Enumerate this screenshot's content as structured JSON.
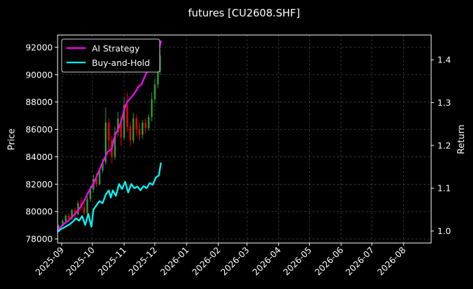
{
  "chart_data": {
    "type": "line",
    "title": "futures [CU2608.SHF]",
    "xlabel": "",
    "ylabel": "Price",
    "ylabel_right": "Return",
    "x_range": [
      "2025-08-28",
      "2026-08-28"
    ],
    "ylim": [
      77700,
      92900
    ],
    "ylim_right": [
      0.972,
      1.458
    ],
    "x_ticks": [
      "2025-09",
      "2025-10",
      "2025-11",
      "2025-12",
      "2026-01",
      "2026-02",
      "2026-03",
      "2026-04",
      "2026-05",
      "2026-06",
      "2026-07",
      "2026-08"
    ],
    "y_ticks": [
      78000,
      80000,
      82000,
      84000,
      86000,
      88000,
      90000,
      92000
    ],
    "y_ticks_right": [
      1.0,
      1.1,
      1.2,
      1.3,
      1.4
    ],
    "grid": true,
    "legend_position": "top-left",
    "colors": {
      "background": "#000000",
      "up": "#2ca02c",
      "down": "#ff0000",
      "grid": "#555555"
    },
    "series": [
      {
        "name": "AI Strategy",
        "color": "#ff00ff",
        "axis": "right",
        "x": [
          "2025-08-28",
          "2025-09-01",
          "2025-09-04",
          "2025-09-08",
          "2025-09-12",
          "2025-09-16",
          "2025-09-19",
          "2025-09-24",
          "2025-09-28",
          "2025-10-02",
          "2025-10-06",
          "2025-10-10",
          "2025-10-14",
          "2025-10-16",
          "2025-10-20",
          "2025-10-22",
          "2025-10-24",
          "2025-10-27",
          "2025-10-30",
          "2025-11-01",
          "2025-11-04",
          "2025-11-08",
          "2025-11-12",
          "2025-11-15",
          "2025-11-18",
          "2025-11-21",
          "2025-11-24",
          "2025-11-27",
          "2025-11-30",
          "2025-12-03",
          "2025-12-05",
          "2025-12-07"
        ],
        "values": [
          1.002,
          1.012,
          1.018,
          1.025,
          1.035,
          1.045,
          1.055,
          1.075,
          1.095,
          1.11,
          1.132,
          1.155,
          1.175,
          1.185,
          1.192,
          1.215,
          1.228,
          1.242,
          1.262,
          1.285,
          1.302,
          1.312,
          1.325,
          1.338,
          1.342,
          1.36,
          1.375,
          1.385,
          1.392,
          1.402,
          1.422,
          1.445
        ]
      },
      {
        "name": "Buy-and-Hold",
        "color": "#00ffff",
        "axis": "right",
        "x": [
          "2025-08-28",
          "2025-08-31",
          "2025-09-03",
          "2025-09-06",
          "2025-09-09",
          "2025-09-12",
          "2025-09-15",
          "2025-09-18",
          "2025-09-21",
          "2025-09-24",
          "2025-09-27",
          "2025-09-30",
          "2025-10-02",
          "2025-10-05",
          "2025-10-08",
          "2025-10-11",
          "2025-10-14",
          "2025-10-17",
          "2025-10-19",
          "2025-10-21",
          "2025-10-24",
          "2025-10-27",
          "2025-10-30",
          "2025-11-02",
          "2025-11-05",
          "2025-11-08",
          "2025-11-11",
          "2025-11-14",
          "2025-11-17",
          "2025-11-20",
          "2025-11-23",
          "2025-11-26",
          "2025-11-29",
          "2025-12-02",
          "2025-12-05",
          "2025-12-07"
        ],
        "values": [
          0.998,
          1.004,
          1.008,
          1.012,
          1.016,
          1.022,
          1.03,
          1.024,
          1.035,
          1.014,
          1.04,
          1.01,
          1.05,
          1.06,
          1.07,
          1.065,
          1.085,
          1.095,
          1.078,
          1.095,
          1.082,
          1.11,
          1.098,
          1.115,
          1.09,
          1.11,
          1.1,
          1.104,
          1.095,
          1.105,
          1.1,
          1.112,
          1.108,
          1.125,
          1.13,
          1.16
        ]
      }
    ],
    "candles": [
      {
        "x": "2025-08-29",
        "open": 78800,
        "close": 78950,
        "high": 79050,
        "low": 78700
      },
      {
        "x": "2025-09-02",
        "open": 79000,
        "close": 79300,
        "high": 79450,
        "low": 78900
      },
      {
        "x": "2025-09-05",
        "open": 79300,
        "close": 79700,
        "high": 79800,
        "low": 79200
      },
      {
        "x": "2025-09-08",
        "open": 79700,
        "close": 79500,
        "high": 79900,
        "low": 79300
      },
      {
        "x": "2025-09-11",
        "open": 79500,
        "close": 80100,
        "high": 80200,
        "low": 79400
      },
      {
        "x": "2025-09-14",
        "open": 80100,
        "close": 79800,
        "high": 80300,
        "low": 79600
      },
      {
        "x": "2025-09-17",
        "open": 79800,
        "close": 80600,
        "high": 80800,
        "low": 79700
      },
      {
        "x": "2025-09-20",
        "open": 80600,
        "close": 80300,
        "high": 81000,
        "low": 80100
      },
      {
        "x": "2025-09-23",
        "open": 80300,
        "close": 79900,
        "high": 80700,
        "low": 79700
      },
      {
        "x": "2025-09-26",
        "open": 79900,
        "close": 80900,
        "high": 81100,
        "low": 79800
      },
      {
        "x": "2025-09-29",
        "open": 80900,
        "close": 81600,
        "high": 81900,
        "low": 80700
      },
      {
        "x": "2025-10-02",
        "open": 81600,
        "close": 82400,
        "high": 82700,
        "low": 81400
      },
      {
        "x": "2025-10-05",
        "open": 82400,
        "close": 82000,
        "high": 82800,
        "low": 81800
      },
      {
        "x": "2025-10-08",
        "open": 82000,
        "close": 83000,
        "high": 83200,
        "low": 81900
      },
      {
        "x": "2025-10-11",
        "open": 83000,
        "close": 83600,
        "high": 83900,
        "low": 82800
      },
      {
        "x": "2025-10-14",
        "open": 83600,
        "close": 86500,
        "high": 87600,
        "low": 83400
      },
      {
        "x": "2025-10-17",
        "open": 86500,
        "close": 85200,
        "high": 86800,
        "low": 84500
      },
      {
        "x": "2025-10-20",
        "open": 85200,
        "close": 84000,
        "high": 85500,
        "low": 83500
      },
      {
        "x": "2025-10-23",
        "open": 84000,
        "close": 85800,
        "high": 86200,
        "low": 83800
      },
      {
        "x": "2025-10-26",
        "open": 85800,
        "close": 86800,
        "high": 87300,
        "low": 85500
      },
      {
        "x": "2025-10-29",
        "open": 86800,
        "close": 85400,
        "high": 87000,
        "low": 84800
      },
      {
        "x": "2025-11-01",
        "open": 85400,
        "close": 87800,
        "high": 88400,
        "low": 85200
      },
      {
        "x": "2025-11-04",
        "open": 87800,
        "close": 86200,
        "high": 88700,
        "low": 85800
      },
      {
        "x": "2025-11-07",
        "open": 86200,
        "close": 85200,
        "high": 86500,
        "low": 84800
      },
      {
        "x": "2025-11-10",
        "open": 85200,
        "close": 86800,
        "high": 87200,
        "low": 85000
      },
      {
        "x": "2025-11-13",
        "open": 86800,
        "close": 86000,
        "high": 87100,
        "low": 85500
      },
      {
        "x": "2025-11-16",
        "open": 86000,
        "close": 85600,
        "high": 86500,
        "low": 85200
      },
      {
        "x": "2025-11-19",
        "open": 85600,
        "close": 86500,
        "high": 86700,
        "low": 85300
      },
      {
        "x": "2025-11-22",
        "open": 86500,
        "close": 86100,
        "high": 86800,
        "low": 85700
      },
      {
        "x": "2025-11-25",
        "open": 86100,
        "close": 86900,
        "high": 87100,
        "low": 85900
      },
      {
        "x": "2025-11-28",
        "open": 86900,
        "close": 88200,
        "high": 88700,
        "low": 86600
      },
      {
        "x": "2025-12-01",
        "open": 88200,
        "close": 89300,
        "high": 89700,
        "low": 87900
      },
      {
        "x": "2025-12-04",
        "open": 89300,
        "close": 90200,
        "high": 90600,
        "low": 89000
      },
      {
        "x": "2025-12-06",
        "open": 90200,
        "close": 91400,
        "high": 91800,
        "low": 90000
      }
    ]
  }
}
